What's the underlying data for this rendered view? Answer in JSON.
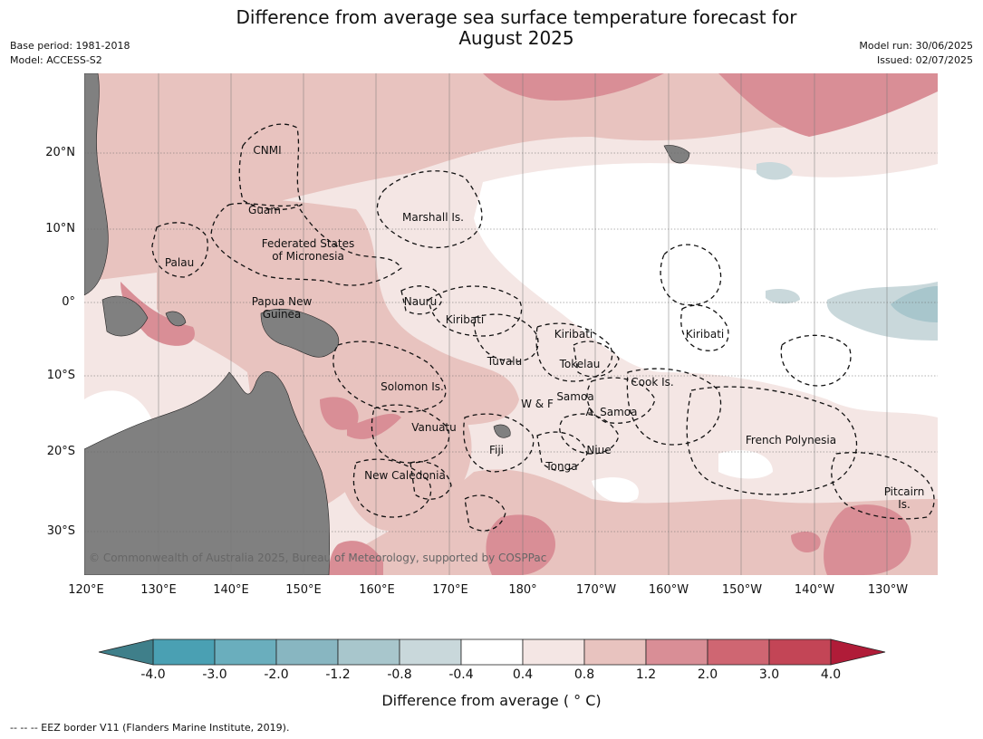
{
  "title": "Difference from average sea surface temperature forecast for August 2025",
  "title_line1": "Difference from average sea surface temperature forecast for",
  "title_line2": "August 2025",
  "meta_left": {
    "base_period": "Base period: 1981-2018",
    "model": "Model: ACCESS-S2"
  },
  "meta_right": {
    "model_run": "Model run: 30/06/2025",
    "issued": "Issued: 02/07/2025"
  },
  "map": {
    "lat_ticks": [
      "20°N",
      "10°N",
      "0°",
      "10°S",
      "20°S",
      "30°S"
    ],
    "lon_ticks": [
      "120°E",
      "130°E",
      "140°E",
      "150°E",
      "160°E",
      "170°E",
      "180°",
      "170°W",
      "160°W",
      "150°W",
      "140°W",
      "130°W"
    ],
    "land_color": "#808080",
    "places": {
      "cnmi": "CNMI",
      "guam": "Guam",
      "marshall": "Marshall Is.",
      "fsm1": "Federated States",
      "fsm2": "of Micronesia",
      "palau": "Palau",
      "png1": "Papua New",
      "png2": "Guinea",
      "nauru": "Nauru",
      "kiribati_w": "Kiribati",
      "kiribati_c": "Kiribati",
      "kiribati_e": "Kiribati",
      "tuvalu": "Tuvalu",
      "tokelau": "Tokelau",
      "cook": "Cook Is.",
      "solomon": "Solomon Is.",
      "wf": "W & F",
      "samoa": "Samoa",
      "asamoa": "A. Samoa",
      "vanuatu": "Vanuatu",
      "fiji": "Fiji",
      "niue": "Niue",
      "frpoly": "French Polynesia",
      "tonga": "Tonga",
      "newcal": "New Caledonia",
      "pitcairn1": "Pitcairn",
      "pitcairn2": "Is."
    },
    "copyright": "© Commonwealth of Australia 2025, Bureau of Meteorology, supported by COSPPac"
  },
  "colorbar": {
    "label": "Difference from average ( ° C)",
    "ticks": [
      "-4.0",
      "-3.0",
      "-2.0",
      "-1.2",
      "-0.8",
      "-0.4",
      "0.4",
      "0.8",
      "1.2",
      "2.0",
      "3.0",
      "4.0"
    ],
    "colors": [
      "#3f7f8a",
      "#4aa0b3",
      "#6aaebd",
      "#88b6c1",
      "#a8c6cc",
      "#c9d8db",
      "#ffffff",
      "#f4e6e4",
      "#e8c3bf",
      "#d98e96",
      "#cf6672",
      "#c34556",
      "#b01c38"
    ]
  },
  "footnote": "-- -- -- EEZ border V11 (Flanders Marine Institute, 2019)."
}
